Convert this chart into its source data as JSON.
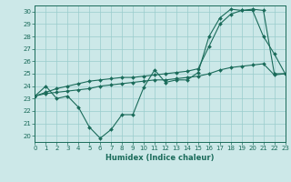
{
  "xlabel": "Humidex (Indice chaleur)",
  "background_color": "#cce8e8",
  "line_color": "#1a6b5a",
  "grid_color": "#99cccc",
  "xlim": [
    0,
    23
  ],
  "ylim": [
    19.5,
    30.5
  ],
  "xticks": [
    0,
    1,
    2,
    3,
    4,
    5,
    6,
    7,
    8,
    9,
    10,
    11,
    12,
    13,
    14,
    15,
    16,
    17,
    18,
    19,
    20,
    21,
    22,
    23
  ],
  "yticks": [
    20,
    21,
    22,
    23,
    24,
    25,
    26,
    27,
    28,
    29,
    30
  ],
  "line1": [
    23.2,
    24.0,
    23.0,
    23.2,
    22.3,
    20.7,
    19.8,
    20.5,
    21.7,
    21.7,
    23.9,
    25.3,
    24.3,
    24.5,
    24.5,
    25.1,
    28.0,
    29.5,
    30.2,
    30.1,
    30.1,
    28.0,
    26.6,
    25.0
  ],
  "line2": [
    23.2,
    23.5,
    23.8,
    24.0,
    24.2,
    24.4,
    24.5,
    24.6,
    24.7,
    24.7,
    24.8,
    24.9,
    25.0,
    25.1,
    25.2,
    25.4,
    27.2,
    29.0,
    29.8,
    30.1,
    30.2,
    30.1,
    25.0,
    25.0
  ],
  "line3": [
    23.2,
    23.4,
    23.5,
    23.6,
    23.7,
    23.8,
    24.0,
    24.1,
    24.2,
    24.3,
    24.4,
    24.5,
    24.5,
    24.6,
    24.7,
    24.8,
    25.0,
    25.3,
    25.5,
    25.6,
    25.7,
    25.8,
    24.9,
    25.0
  ],
  "xlabel_fontsize": 6,
  "tick_fontsize": 5
}
